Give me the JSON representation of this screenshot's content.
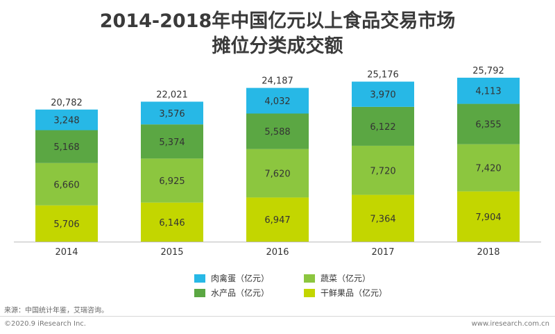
{
  "chart_data": {
    "type": "bar",
    "stacked": true,
    "title_lines": [
      "2014-2018年中国亿元以上食品交易市场",
      "摊位分类成交额"
    ],
    "categories": [
      "2014",
      "2015",
      "2016",
      "2017",
      "2018"
    ],
    "totals": [
      "20,782",
      "22,021",
      "24,187",
      "25,176",
      "25,792"
    ],
    "total_values": [
      20782,
      22021,
      24187,
      25176,
      25792
    ],
    "ylim": [
      0,
      26000
    ],
    "grid": false,
    "legend_position": "bottom",
    "series": [
      {
        "name": "干鲜果品（亿元）",
        "color": "#c3d600",
        "values": [
          5706,
          6146,
          6947,
          7364,
          7904
        ],
        "labels": [
          "5,706",
          "6,146",
          "6,947",
          "7,364",
          "7,904"
        ]
      },
      {
        "name": "蔬菜（亿元）",
        "color": "#8cc63f",
        "values": [
          6660,
          6925,
          7620,
          7720,
          7420
        ],
        "labels": [
          "6,660",
          "6,925",
          "7,620",
          "7,720",
          "7,420"
        ]
      },
      {
        "name": "水产品（亿元）",
        "color": "#5ba743",
        "values": [
          5168,
          5374,
          5588,
          6122,
          6355
        ],
        "labels": [
          "5,168",
          "5,374",
          "5,588",
          "6,122",
          "6,355"
        ]
      },
      {
        "name": "肉禽蛋（亿元）",
        "color": "#27b8e6",
        "values": [
          3248,
          3576,
          4032,
          3970,
          4113
        ],
        "labels": [
          "3,248",
          "3,576",
          "4,032",
          "3,970",
          "4,113"
        ]
      }
    ]
  },
  "source_text": "来源：中国统计年鉴，艾瑞咨询。",
  "copyright_text": "©2020.9 iResearch Inc.",
  "site_text": "www.iresearch.com.cn"
}
